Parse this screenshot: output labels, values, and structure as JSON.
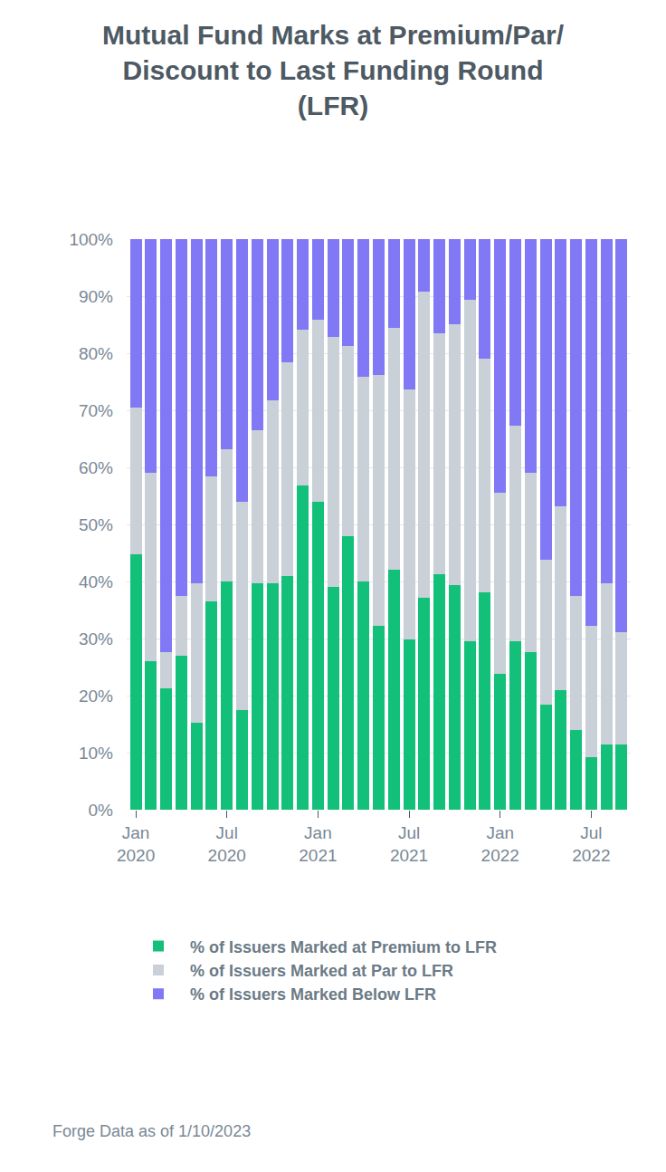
{
  "chart_data": {
    "type": "bar",
    "title": [
      "Mutual Fund Marks at Premium/Par/",
      "Discount to Last Funding Round",
      "(LFR)"
    ],
    "categories": [
      "Jan 2020",
      null,
      null,
      null,
      null,
      null,
      "Jul 2020",
      null,
      null,
      null,
      null,
      null,
      "Jan 2021",
      null,
      null,
      null,
      null,
      null,
      "Jul 2021",
      null,
      null,
      null,
      null,
      null,
      "Jan 2022",
      null,
      null,
      null,
      null,
      null,
      "Jul 2022",
      null,
      null
    ],
    "series": [
      {
        "name": "% of Issuers Marked at Premium to LFR",
        "color": "#13c07a",
        "values": [
          44.8,
          26,
          21.3,
          27,
          15.3,
          36.5,
          40,
          17.5,
          39.7,
          39.7,
          41,
          56.8,
          54,
          39,
          48,
          40,
          32.3,
          42,
          29.8,
          37.2,
          41.2,
          39.3,
          29.5,
          38.1,
          23.8,
          29.5,
          27.6,
          18.4,
          21,
          14,
          9.2,
          11.4,
          11.4
        ]
      },
      {
        "name": "% of Issuers Marked at Par to LFR",
        "color": "#c9d0d7",
        "values": [
          25.7,
          33,
          6.3,
          10.5,
          24.4,
          21.9,
          23.2,
          36.5,
          26.8,
          32,
          37.4,
          27.4,
          31.8,
          43.9,
          33.3,
          35.9,
          43.9,
          42.5,
          43.8,
          53.6,
          42.3,
          45.8,
          59.8,
          40.9,
          31.8,
          37.8,
          31.4,
          25.4,
          32.1,
          23.5,
          23.1,
          28.3,
          19.7
        ]
      },
      {
        "name": "% of Issuers Marked Below LFR",
        "color": "#8178f5",
        "values": [
          29.5,
          41,
          72.4,
          62.5,
          60.3,
          41.6,
          36.8,
          46,
          33.5,
          28.3,
          21.6,
          15.8,
          14.2,
          17.1,
          18.7,
          24.1,
          23.8,
          15.5,
          26.4,
          9.2,
          16.5,
          14.9,
          10.7,
          21,
          44.4,
          32.7,
          41,
          56.2,
          46.9,
          62.5,
          67.7,
          60.3,
          68.9
        ]
      }
    ],
    "ylim": [
      0,
      100
    ],
    "yticks": [
      {
        "value": 0,
        "label": "0%"
      },
      {
        "value": 10,
        "label": "10%"
      },
      {
        "value": 20,
        "label": "20%"
      },
      {
        "value": 30,
        "label": "30%"
      },
      {
        "value": 40,
        "label": "40%"
      },
      {
        "value": 50,
        "label": "50%"
      },
      {
        "value": 60,
        "label": "60%"
      },
      {
        "value": 70,
        "label": "70%"
      },
      {
        "value": 80,
        "label": "80%"
      },
      {
        "value": 90,
        "label": "90%"
      },
      {
        "value": 100,
        "label": "100%"
      }
    ],
    "stacked": true,
    "grid": true,
    "legend": "bottom",
    "annotations": [
      "Forge Data as of 1/10/2023"
    ]
  }
}
